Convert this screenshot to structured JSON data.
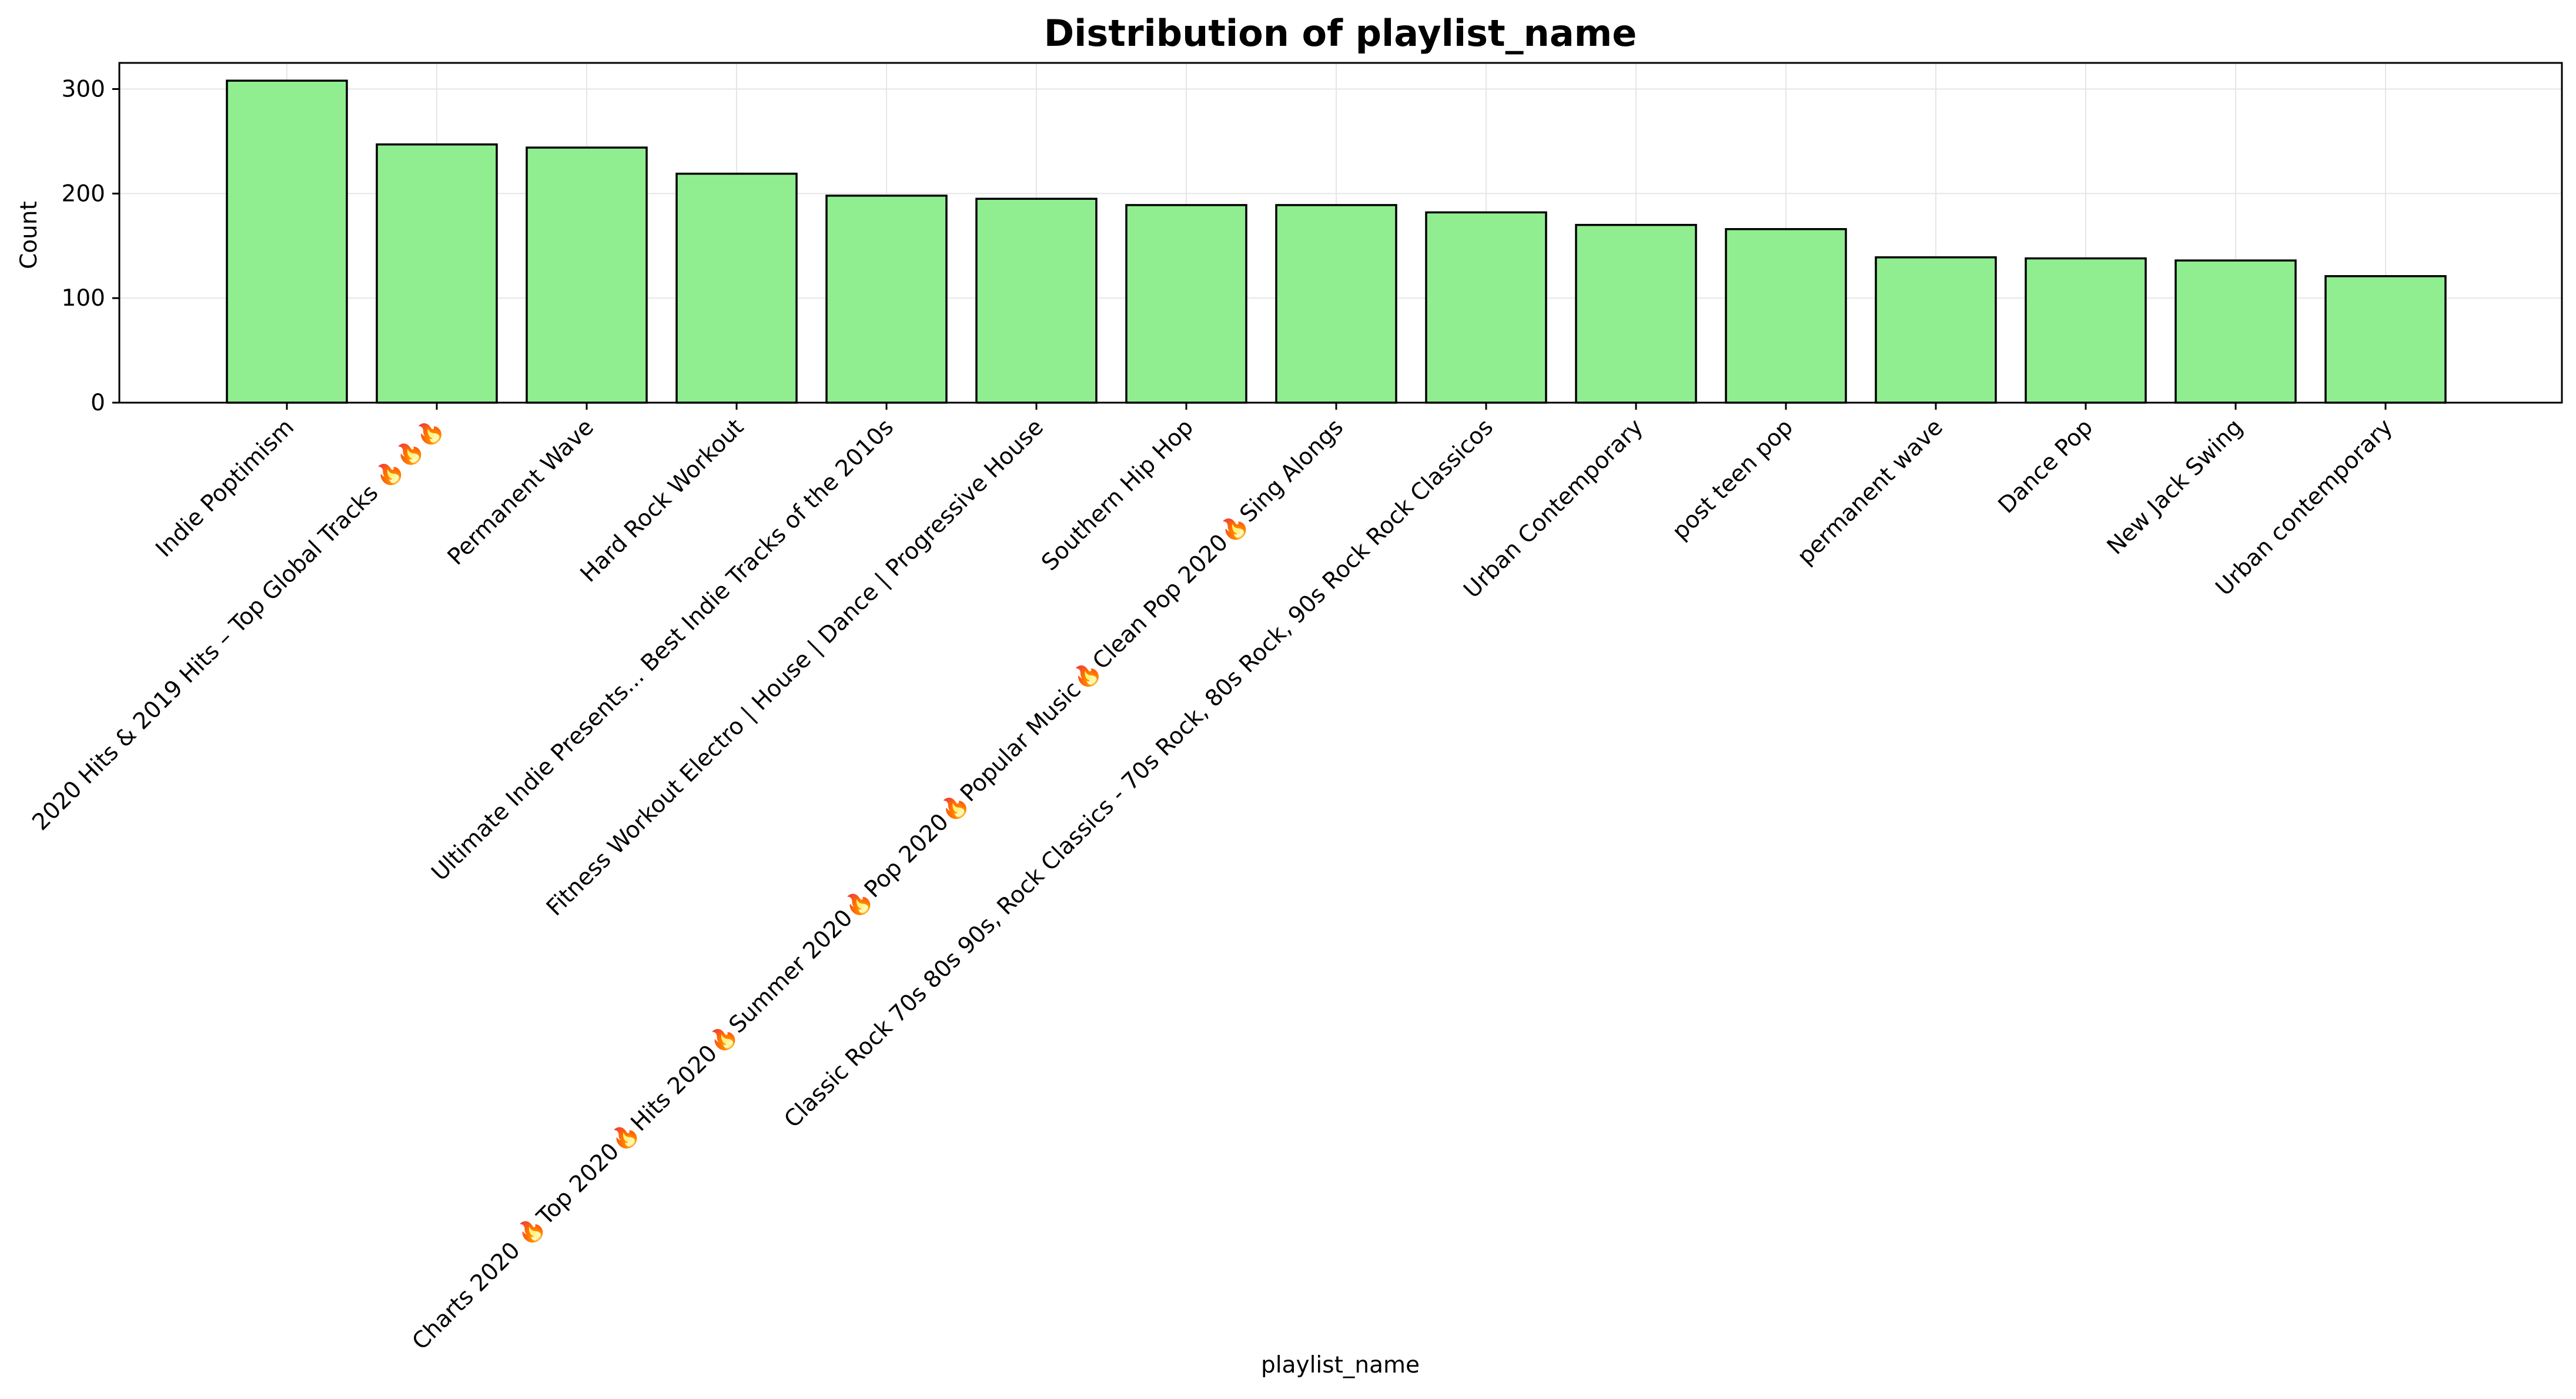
{
  "chart_data": {
    "type": "bar",
    "title": "Distribution of playlist_name",
    "xlabel": "playlist_name",
    "ylabel": "Count",
    "ylim": [
      0,
      325
    ],
    "yticks": [
      0,
      100,
      200,
      300
    ],
    "grid": true,
    "categories": [
      "Indie Poptimism",
      "2020 Hits & 2019  Hits – Top Global Tracks 🔥🔥🔥",
      "Permanent Wave",
      "Hard Rock Workout",
      "Ultimate Indie Presents... Best Indie Tracks of the 2010s",
      "Fitness Workout Electro | House | Dance | Progressive House",
      "Southern Hip Hop",
      "Charts 2020 🔥Top 2020🔥Hits 2020🔥Summer 2020🔥Pop 2020🔥Popular Music🔥Clean Pop 2020🔥Sing Alongs",
      "Classic Rock 70s 80s 90s, Rock Classics - 70s Rock, 80s Rock, 90s Rock Rock  Classicos",
      "Urban Contemporary",
      "post teen pop",
      "permanent wave",
      "Dance Pop",
      "New Jack Swing",
      "Urban contemporary"
    ],
    "values": [
      308,
      247,
      244,
      219,
      198,
      195,
      189,
      189,
      182,
      170,
      166,
      139,
      138,
      136,
      121
    ],
    "colors": {
      "bar_fill": "#90ee90",
      "bar_edge": "#000000",
      "grid": "#e6e6e6"
    }
  }
}
